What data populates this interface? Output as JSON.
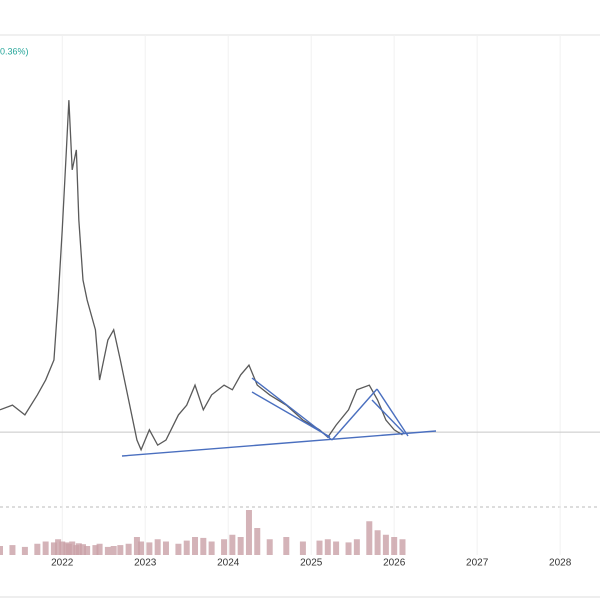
{
  "chart_data": {
    "type": "line",
    "legend_text": "0.36%)",
    "x": [
      2021.25,
      2021.4,
      2021.55,
      2021.7,
      2021.8,
      2021.9,
      2021.95,
      2022.0,
      2022.05,
      2022.08,
      2022.12,
      2022.17,
      2022.2,
      2022.25,
      2022.3,
      2022.4,
      2022.45,
      2022.55,
      2022.62,
      2022.7,
      2022.8,
      2022.9,
      2022.95,
      2023.05,
      2023.15,
      2023.25,
      2023.4,
      2023.5,
      2023.6,
      2023.7,
      2023.8,
      2023.95,
      2024.05,
      2024.15,
      2024.25,
      2024.35,
      2024.5,
      2024.7,
      2024.9,
      2025.1,
      2025.2,
      2025.3,
      2025.45,
      2025.55,
      2025.7,
      2025.8,
      2025.9,
      2026.0,
      2026.1
    ],
    "series": [
      {
        "color": "#5a5a5a",
        "values": [
          19.4,
          20.4,
          18.3,
          22.6,
          25.8,
          30.1,
          43.0,
          58.1,
          75.3,
          86.0,
          71.0,
          75.3,
          60.2,
          47.3,
          43.0,
          36.6,
          25.8,
          34.4,
          36.6,
          30.1,
          21.5,
          12.9,
          10.8,
          15.1,
          11.8,
          12.9,
          18.3,
          20.4,
          24.7,
          19.4,
          22.6,
          24.7,
          23.7,
          26.9,
          29.0,
          24.7,
          22.6,
          20.4,
          17.2,
          15.1,
          13.5,
          16.1,
          19.4,
          23.7,
          24.7,
          21.5,
          17.2,
          15.1,
          14.0
        ]
      },
      {
        "color": "#c9a0a6",
        "values": [
          20,
          22,
          18,
          25,
          30,
          28,
          35,
          30,
          28,
          25,
          30,
          22,
          26,
          24,
          20,
          22,
          25,
          18,
          20,
          22,
          25,
          40,
          30,
          28,
          35,
          30,
          25,
          32,
          40,
          38,
          30,
          35,
          45,
          40,
          100,
          60,
          35,
          40,
          30,
          32,
          35,
          30,
          28,
          35,
          75,
          55,
          45,
          40,
          35
        ]
      }
    ],
    "xlim": [
      2021.25,
      2028.48
    ],
    "xticks": [
      2022,
      2023,
      2024,
      2025,
      2026,
      2027,
      2028
    ],
    "ylim": [
      0,
      100
    ],
    "y2lim": [
      0,
      100
    ],
    "hline": 14.6,
    "grid": true
  }
}
